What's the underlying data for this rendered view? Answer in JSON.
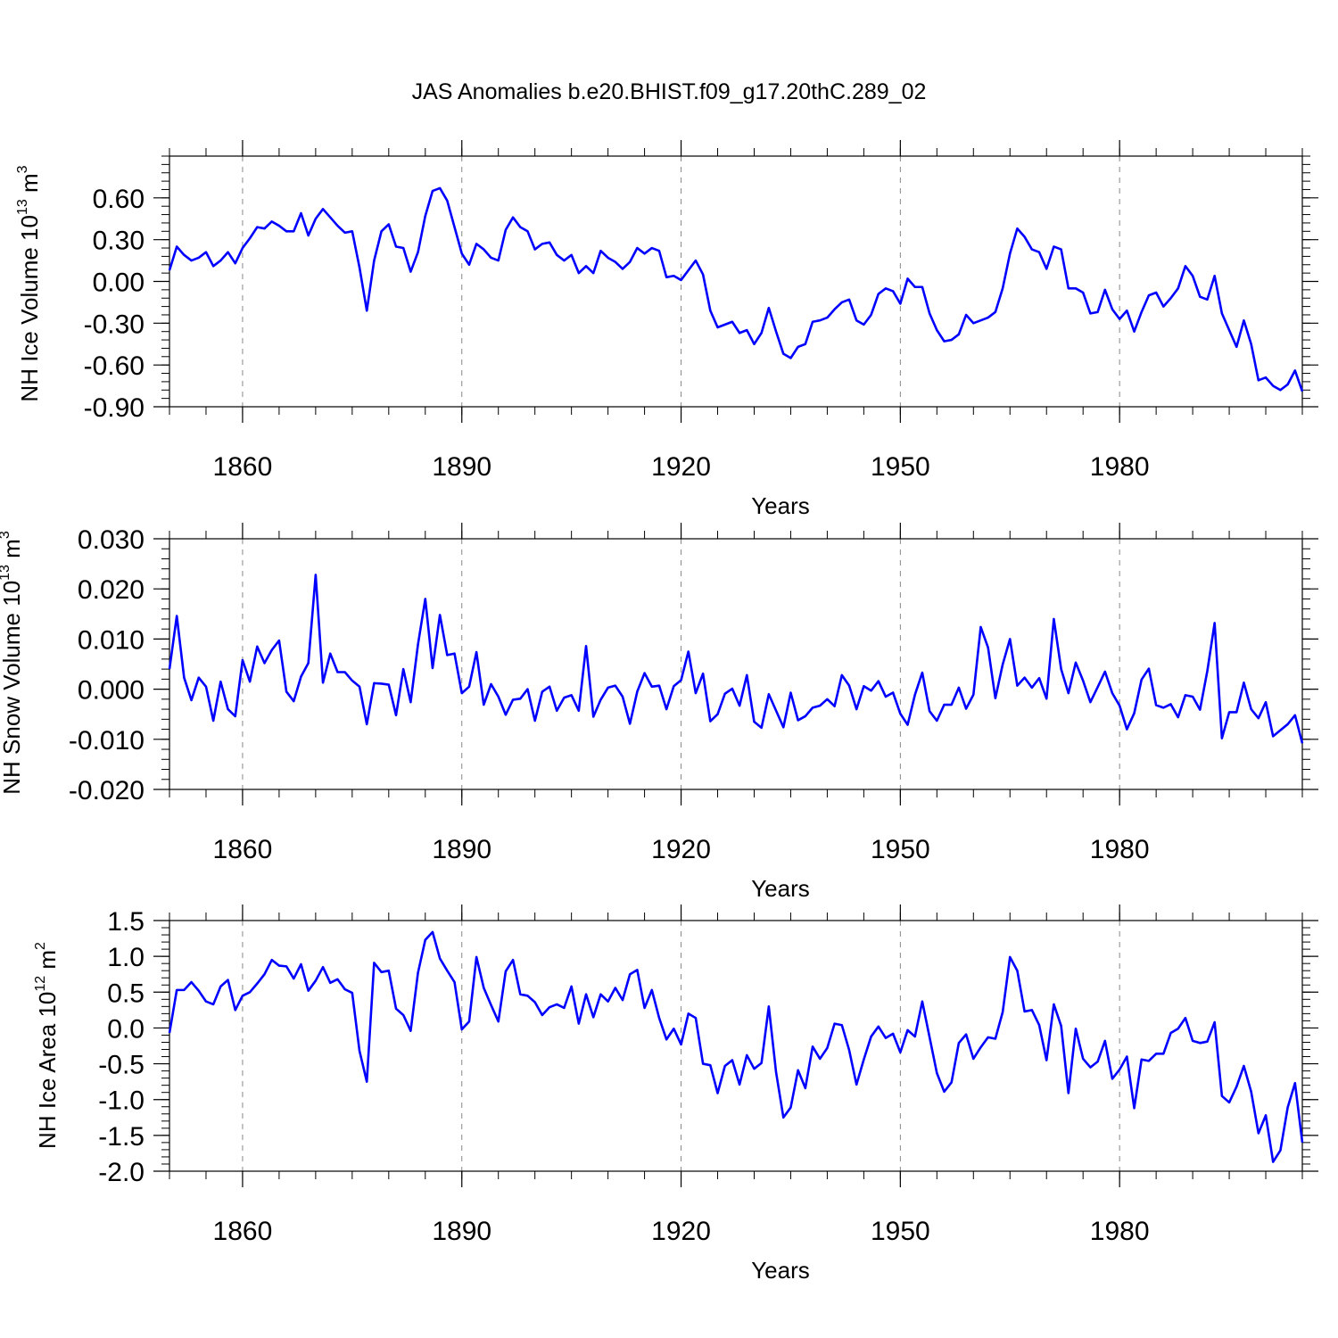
{
  "figure_title": "JAS Anomalies b.e20.BHIST.f09_g17.20thC.289_02",
  "colors": {
    "line": "#0000ff",
    "axes": "#000000",
    "grid": "#888888",
    "background": "#ffffff"
  },
  "chart_data": [
    {
      "type": "line",
      "id": "ice-volume",
      "ylabel": "NH Ice Volume 10",
      "ylabel_exp": "13",
      "ylabel_unit": " m",
      "ylabel_unit_exp": "3",
      "xlabel": "Years",
      "xlim": [
        1850,
        2005
      ],
      "ylim": [
        -0.9,
        0.9
      ],
      "yticks": [
        -0.9,
        -0.6,
        -0.3,
        0.0,
        0.3,
        0.6
      ],
      "ytick_labels": [
        "-0.90",
        "-0.60",
        "-0.30",
        "0.00",
        "0.30",
        "0.60"
      ],
      "xticks": [
        1860,
        1890,
        1920,
        1950,
        1980
      ],
      "xtick_labels": [
        "1860",
        "1890",
        "1920",
        "1950",
        "1980"
      ],
      "grid_x": true,
      "x_start": 1850,
      "values": [
        0.08,
        0.25,
        0.19,
        0.15,
        0.17,
        0.21,
        0.11,
        0.15,
        0.21,
        0.13,
        0.24,
        0.31,
        0.39,
        0.38,
        0.43,
        0.4,
        0.36,
        0.36,
        0.49,
        0.33,
        0.45,
        0.52,
        0.46,
        0.4,
        0.35,
        0.36,
        0.1,
        -0.21,
        0.15,
        0.36,
        0.41,
        0.25,
        0.24,
        0.07,
        0.21,
        0.47,
        0.65,
        0.67,
        0.58,
        0.39,
        0.2,
        0.12,
        0.27,
        0.23,
        0.17,
        0.15,
        0.37,
        0.46,
        0.39,
        0.36,
        0.23,
        0.27,
        0.28,
        0.19,
        0.15,
        0.19,
        0.06,
        0.11,
        0.06,
        0.22,
        0.17,
        0.14,
        0.09,
        0.14,
        0.24,
        0.2,
        0.24,
        0.22,
        0.03,
        0.04,
        0.01,
        0.08,
        0.15,
        0.05,
        -0.21,
        -0.33,
        -0.31,
        -0.29,
        -0.37,
        -0.35,
        -0.45,
        -0.37,
        -0.19,
        -0.36,
        -0.52,
        -0.55,
        -0.47,
        -0.45,
        -0.29,
        -0.28,
        -0.26,
        -0.2,
        -0.15,
        -0.13,
        -0.28,
        -0.31,
        -0.24,
        -0.09,
        -0.05,
        -0.07,
        -0.16,
        0.02,
        -0.04,
        -0.04,
        -0.23,
        -0.35,
        -0.43,
        -0.42,
        -0.38,
        -0.24,
        -0.3,
        -0.28,
        -0.26,
        -0.22,
        -0.05,
        0.2,
        0.38,
        0.32,
        0.23,
        0.21,
        0.09,
        0.25,
        0.23,
        -0.05,
        -0.05,
        -0.08,
        -0.23,
        -0.22,
        -0.06,
        -0.2,
        -0.27,
        -0.21,
        -0.36,
        -0.22,
        -0.1,
        -0.08,
        -0.18,
        -0.12,
        -0.05,
        0.11,
        0.04,
        -0.11,
        -0.13,
        0.04,
        -0.23,
        -0.35,
        -0.47,
        -0.28,
        -0.45,
        -0.71,
        -0.69,
        -0.75,
        -0.78,
        -0.74,
        -0.64,
        -0.79
      ]
    },
    {
      "type": "line",
      "id": "snow-volume",
      "ylabel": "NH Snow Volume 10",
      "ylabel_exp": "13",
      "ylabel_unit": " m",
      "ylabel_unit_exp": "3",
      "xlabel": "Years",
      "xlim": [
        1850,
        2005
      ],
      "ylim": [
        -0.02,
        0.03
      ],
      "yticks": [
        -0.02,
        -0.01,
        0.0,
        0.01,
        0.02,
        0.03
      ],
      "ytick_labels": [
        "-0.020",
        "-0.010",
        "0.000",
        "0.010",
        "0.020",
        "0.030"
      ],
      "xticks": [
        1860,
        1890,
        1920,
        1950,
        1980
      ],
      "xtick_labels": [
        "1860",
        "1890",
        "1920",
        "1950",
        "1980"
      ],
      "grid_x": true,
      "x_start": 1850,
      "values": [
        0.004,
        0.0146,
        0.0023,
        -0.0022,
        0.0023,
        0.0005,
        -0.0063,
        0.0015,
        -0.004,
        -0.0054,
        0.0058,
        0.0015,
        0.0085,
        0.0052,
        0.0078,
        0.0097,
        -0.0005,
        -0.0024,
        0.0025,
        0.0052,
        0.0228,
        0.0013,
        0.0071,
        0.0034,
        0.0034,
        0.0017,
        0.0005,
        -0.007,
        0.0012,
        0.0011,
        0.0009,
        -0.0052,
        0.004,
        -0.0026,
        0.0089,
        0.018,
        0.0042,
        0.0148,
        0.0068,
        0.0071,
        -0.0008,
        0.0005,
        0.0074,
        -0.0031,
        0.001,
        -0.0015,
        -0.0051,
        -0.0021,
        -0.0019,
        0.0,
        -0.0063,
        -0.0005,
        0.0005,
        -0.0043,
        -0.0017,
        -0.0012,
        -0.0043,
        0.0086,
        -0.0055,
        -0.0021,
        0.0003,
        0.0007,
        -0.0015,
        -0.0069,
        -0.0005,
        0.0032,
        0.0005,
        0.0007,
        -0.004,
        0.0006,
        0.0018,
        0.0075,
        -0.0008,
        0.0031,
        -0.0064,
        -0.005,
        -0.0009,
        0.0001,
        -0.0033,
        0.0028,
        -0.0065,
        -0.0077,
        -0.001,
        -0.0043,
        -0.0076,
        -0.0007,
        -0.0062,
        -0.0054,
        -0.0037,
        -0.0033,
        -0.002,
        -0.0034,
        0.0028,
        0.0007,
        -0.004,
        0.0006,
        -0.0003,
        0.0016,
        -0.0015,
        -0.0007,
        -0.0049,
        -0.0071,
        -0.0011,
        0.0033,
        -0.0044,
        -0.0063,
        -0.0031,
        -0.0031,
        0.0003,
        -0.0039,
        -0.0011,
        0.0124,
        0.0083,
        -0.0018,
        0.0049,
        0.01,
        0.0007,
        0.0023,
        0.0003,
        0.0022,
        -0.0019,
        0.014,
        0.004,
        -0.0008,
        0.0053,
        0.0017,
        -0.0026,
        0.0004,
        0.0035,
        -0.0008,
        -0.0033,
        -0.008,
        -0.0048,
        0.0019,
        0.0041,
        -0.0032,
        -0.0037,
        -0.003,
        -0.0056,
        -0.0012,
        -0.0015,
        -0.0041,
        0.0036,
        0.0132,
        -0.0098,
        -0.0046,
        -0.0046,
        0.0013,
        -0.004,
        -0.0058,
        -0.0026,
        -0.0094,
        -0.0082,
        -0.007,
        -0.0052,
        -0.0108
      ]
    },
    {
      "type": "line",
      "id": "ice-area",
      "ylabel": "NH Ice Area 10",
      "ylabel_exp": "12",
      "ylabel_unit": " m",
      "ylabel_unit_exp": "2",
      "xlabel": "Years",
      "xlim": [
        1850,
        2005
      ],
      "ylim": [
        -2.0,
        1.5
      ],
      "yticks": [
        -2.0,
        -1.5,
        -1.0,
        -0.5,
        0.0,
        0.5,
        1.0,
        1.5
      ],
      "ytick_labels": [
        "-2.0",
        "-1.5",
        "-1.0",
        "-0.5",
        "0.0",
        "0.5",
        "1.0",
        "1.5"
      ],
      "xticks": [
        1860,
        1890,
        1920,
        1950,
        1980
      ],
      "xtick_labels": [
        "1860",
        "1890",
        "1920",
        "1950",
        "1980"
      ],
      "grid_x": true,
      "x_start": 1850,
      "values": [
        -0.07,
        0.53,
        0.53,
        0.64,
        0.52,
        0.37,
        0.33,
        0.58,
        0.67,
        0.25,
        0.45,
        0.5,
        0.62,
        0.75,
        0.95,
        0.87,
        0.86,
        0.69,
        0.89,
        0.52,
        0.66,
        0.85,
        0.63,
        0.68,
        0.54,
        0.49,
        -0.32,
        -0.75,
        0.91,
        0.78,
        0.8,
        0.27,
        0.18,
        -0.04,
        0.77,
        1.23,
        1.34,
        0.97,
        0.8,
        0.64,
        -0.02,
        0.09,
        0.99,
        0.56,
        0.32,
        0.09,
        0.79,
        0.95,
        0.47,
        0.45,
        0.36,
        0.18,
        0.29,
        0.33,
        0.28,
        0.58,
        0.06,
        0.47,
        0.15,
        0.47,
        0.37,
        0.56,
        0.39,
        0.75,
        0.81,
        0.28,
        0.53,
        0.14,
        -0.16,
        -0.01,
        -0.23,
        0.2,
        0.14,
        -0.5,
        -0.52,
        -0.91,
        -0.53,
        -0.45,
        -0.79,
        -0.38,
        -0.57,
        -0.49,
        0.3,
        -0.62,
        -1.25,
        -1.11,
        -0.59,
        -0.84,
        -0.26,
        -0.43,
        -0.28,
        0.06,
        0.04,
        -0.31,
        -0.79,
        -0.44,
        -0.12,
        0.02,
        -0.14,
        -0.08,
        -0.34,
        -0.03,
        -0.12,
        0.37,
        -0.13,
        -0.63,
        -0.89,
        -0.76,
        -0.21,
        -0.09,
        -0.43,
        -0.27,
        -0.13,
        -0.15,
        0.22,
        0.99,
        0.8,
        0.23,
        0.25,
        0.04,
        -0.45,
        0.33,
        0.03,
        -0.91,
        -0.01,
        -0.43,
        -0.55,
        -0.47,
        -0.18,
        -0.71,
        -0.58,
        -0.4,
        -1.12,
        -0.44,
        -0.46,
        -0.36,
        -0.36,
        -0.07,
        -0.01,
        0.14,
        -0.18,
        -0.21,
        -0.19,
        0.08,
        -0.95,
        -1.04,
        -0.82,
        -0.53,
        -0.89,
        -1.47,
        -1.22,
        -1.87,
        -1.71,
        -1.11,
        -0.77,
        -1.6
      ]
    }
  ]
}
